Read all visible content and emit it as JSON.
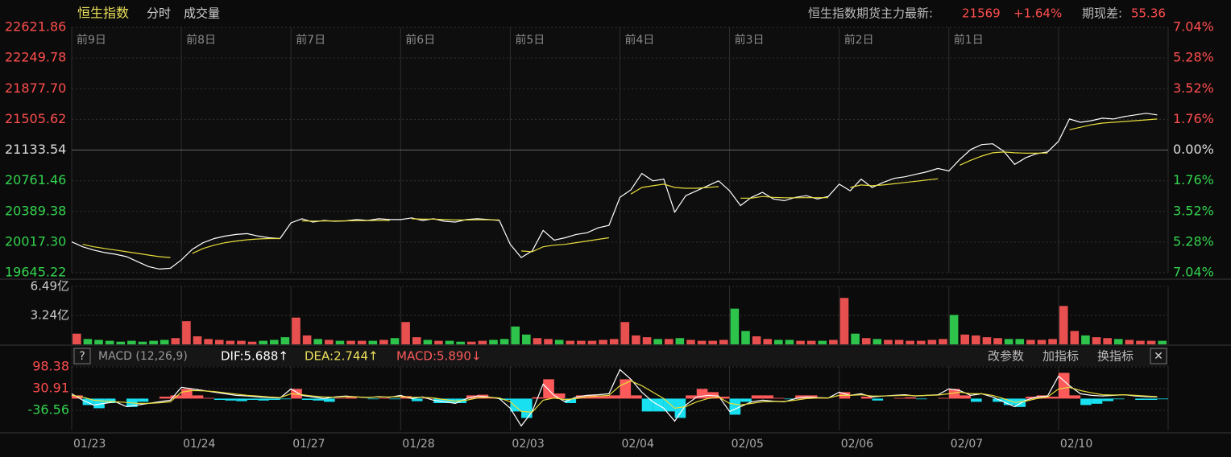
{
  "header": {
    "title": "恒生指数",
    "tabs": [
      "分时",
      "成交量"
    ],
    "futures_label": "恒生指数期货主力最新:",
    "futures_price": "21569",
    "futures_change": "+1.64%",
    "basis_label": "期现差:",
    "basis_value": "55.36"
  },
  "macd_header": {
    "help": "?",
    "name": "MACD (12,26,9)",
    "dif": "DIF:5.688↑",
    "dea": "DEA:2.744↑",
    "macd": "MACD:5.890↓",
    "buttons": [
      "改参数",
      "加指标",
      "换指标"
    ],
    "close": "✕"
  },
  "chart_data": [
    {
      "type": "line",
      "categories": [
        "01/23",
        "01/24",
        "01/27",
        "01/28",
        "02/03",
        "02/04",
        "02/05",
        "02/06",
        "02/07",
        "02/10"
      ],
      "day_labels": [
        "前9日",
        "前8日",
        "前7日",
        "前6日",
        "前5日",
        "前4日",
        "前3日",
        "前2日",
        "前1日"
      ],
      "up_color": "#ff4d4d",
      "down_color": "#33d44f",
      "flat_color": "#dddddd",
      "x": [
        0,
        0.1,
        0.2,
        0.3,
        0.4,
        0.5,
        0.6,
        0.7,
        0.8,
        0.9,
        1,
        1.1,
        1.2,
        1.3,
        1.4,
        1.5,
        1.6,
        1.7,
        1.8,
        1.9,
        2,
        2.1,
        2.2,
        2.3,
        2.4,
        2.5,
        2.6,
        2.7,
        2.8,
        2.9,
        3,
        3.1,
        3.2,
        3.3,
        3.4,
        3.5,
        3.6,
        3.7,
        3.8,
        3.9,
        4,
        4.1,
        4.2,
        4.3,
        4.4,
        4.5,
        4.6,
        4.7,
        4.8,
        4.9,
        5,
        5.1,
        5.2,
        5.3,
        5.4,
        5.5,
        5.6,
        5.7,
        5.8,
        5.9,
        6,
        6.1,
        6.2,
        6.3,
        6.4,
        6.5,
        6.6,
        6.7,
        6.8,
        6.9,
        7,
        7.1,
        7.2,
        7.3,
        7.4,
        7.5,
        7.6,
        7.7,
        7.8,
        7.9,
        8,
        8.1,
        8.2,
        8.3,
        8.4,
        8.5,
        8.6,
        8.7,
        8.8,
        8.9,
        9,
        9.1,
        9.2,
        9.3,
        9.4,
        9.5,
        9.6,
        9.7,
        9.8,
        9.9
      ],
      "xlim": [
        0,
        10
      ],
      "ylim": [
        19645.22,
        22621.86
      ],
      "yticks": [
        22621.86,
        22249.78,
        {
          "value": 21877.7,
          "label": "21877.70"
        },
        21505.62,
        21133.54,
        20761.46,
        20389.38,
        {
          "value": 20017.3,
          "label": "20017.30"
        },
        19645.22
      ],
      "y2lim": [
        -7.04,
        7.04
      ],
      "y2ticks": [
        {
          "value": 7.04,
          "label": "7.04%"
        },
        {
          "value": 5.28,
          "label": "5.28%"
        },
        {
          "value": 3.52,
          "label": "3.52%"
        },
        {
          "value": 1.76,
          "label": "1.76%"
        },
        {
          "value": 0,
          "label": "0.00%"
        },
        {
          "value": -1.76,
          "label": "1.76%"
        },
        {
          "value": -3.52,
          "label": "3.52%"
        },
        {
          "value": -5.28,
          "label": "5.28%"
        },
        {
          "value": -7.04,
          "label": "7.04%"
        }
      ],
      "grid": true,
      "series": [
        {
          "color": "#ffffff",
          "values": [
            20020,
            19960,
            19920,
            19890,
            19870,
            19840,
            19780,
            19720,
            19690,
            19700,
            19800,
            19930,
            20010,
            20060,
            20090,
            20110,
            20120,
            20090,
            20070,
            20060,
            20250,
            20300,
            20260,
            20280,
            20270,
            20275,
            20290,
            20280,
            20300,
            20290,
            20290,
            20310,
            20280,
            20300,
            20270,
            20260,
            20290,
            20300,
            20290,
            20280,
            19990,
            19830,
            19910,
            20160,
            20040,
            20070,
            20110,
            20130,
            20190,
            20220,
            20560,
            20650,
            20850,
            20760,
            20780,
            20380,
            20580,
            20640,
            20700,
            20760,
            20640,
            20460,
            20560,
            20620,
            20540,
            20520,
            20560,
            20580,
            20540,
            20570,
            20720,
            20640,
            20780,
            20680,
            20740,
            20790,
            20810,
            20840,
            20870,
            20910,
            20880,
            21020,
            21140,
            21200,
            21210,
            21120,
            20960,
            21040,
            21090,
            21110,
            21240,
            21510,
            21470,
            21490,
            21520,
            21510,
            21540,
            21560,
            21580,
            21560
          ]
        },
        {
          "color": "#e6dc3c",
          "values": [
            null,
            19990,
            19960,
            19940,
            19920,
            19900,
            19880,
            19860,
            19840,
            19830,
            null,
            19880,
            19940,
            19980,
            20010,
            20030,
            20045,
            20055,
            20060,
            20060,
            null,
            20275,
            20272,
            20274,
            20274,
            20275,
            20277,
            20278,
            20280,
            20280,
            null,
            20300,
            20295,
            20295,
            20290,
            20285,
            20285,
            20287,
            20287,
            20286,
            null,
            19910,
            19900,
            19960,
            19980,
            19990,
            20010,
            20030,
            20050,
            20070,
            null,
            20600,
            20680,
            20700,
            20720,
            20680,
            20670,
            20670,
            20680,
            20690,
            null,
            20550,
            20550,
            20570,
            20560,
            20555,
            20555,
            20556,
            20556,
            20556,
            null,
            20680,
            20710,
            20700,
            20710,
            20725,
            20740,
            20755,
            20770,
            20785,
            null,
            20950,
            21010,
            21060,
            21100,
            21110,
            21100,
            21095,
            21095,
            21097,
            null,
            21380,
            21410,
            21440,
            21460,
            21470,
            21480,
            21490,
            21500,
            21510
          ]
        }
      ]
    },
    {
      "type": "bar",
      "up_color": "#e8504f",
      "down_color": "#2ec44b",
      "ylim": [
        0,
        6.49
      ],
      "yticks": [
        {
          "value": 6.49,
          "label": "6.49亿"
        },
        {
          "value": 3.24,
          "label": "3.24亿"
        }
      ],
      "grid": true,
      "values": [
        1.2,
        0.6,
        0.5,
        0.4,
        0.3,
        0.4,
        0.3,
        0.4,
        0.5,
        0.7,
        2.6,
        0.9,
        0.6,
        0.5,
        0.4,
        0.4,
        0.3,
        0.4,
        0.5,
        0.8,
        3.0,
        1.0,
        0.6,
        0.5,
        0.4,
        0.4,
        0.4,
        0.4,
        0.5,
        0.7,
        2.5,
        0.8,
        0.5,
        0.4,
        0.4,
        0.3,
        0.3,
        0.4,
        0.5,
        0.6,
        2.0,
        1.1,
        0.7,
        0.6,
        0.5,
        0.4,
        0.4,
        0.4,
        0.5,
        0.6,
        2.5,
        1.0,
        0.8,
        0.6,
        0.6,
        0.7,
        0.5,
        0.4,
        0.4,
        0.5,
        4.0,
        1.5,
        0.9,
        0.6,
        0.5,
        0.5,
        0.4,
        0.4,
        0.4,
        0.5,
        5.2,
        1.2,
        0.7,
        0.6,
        0.5,
        0.5,
        0.4,
        0.4,
        0.5,
        0.6,
        3.3,
        1.1,
        1.0,
        0.8,
        0.7,
        0.6,
        0.6,
        0.5,
        0.5,
        0.6,
        4.3,
        1.5,
        1.0,
        0.8,
        0.7,
        0.6,
        0.5,
        0.4,
        0.4,
        0.4
      ]
    },
    {
      "type": "macd",
      "up_color": "#ff5a5a",
      "down_color": "#18e0f0",
      "ylim": [
        -99,
        101
      ],
      "yticks": [
        98.38,
        30.91,
        -36.56
      ],
      "grid": true,
      "values": [
        10,
        -20,
        -30,
        -14,
        0,
        -26,
        -10,
        0,
        6,
        10,
        30,
        10,
        2,
        -4,
        -6,
        -8,
        -4,
        -6,
        -4,
        -2,
        30,
        -4,
        -6,
        -10,
        2,
        4,
        0,
        -2,
        2,
        -2,
        8,
        -8,
        2,
        -14,
        -14,
        -14,
        10,
        12,
        2,
        -4,
        -40,
        -60,
        4,
        60,
        16,
        -14,
        10,
        10,
        8,
        10,
        60,
        10,
        -40,
        -40,
        -40,
        -60,
        10,
        30,
        20,
        6,
        -50,
        -10,
        10,
        10,
        2,
        -2,
        10,
        10,
        2,
        0,
        20,
        0,
        6,
        -6,
        0,
        2,
        4,
        -2,
        0,
        2,
        30,
        10,
        -10,
        0,
        -10,
        -20,
        -26,
        6,
        10,
        6,
        80,
        10,
        -20,
        -16,
        -8,
        -2,
        0,
        -4,
        -4,
        -2
      ],
      "series": [
        {
          "color": "#ffffff",
          "values": [
            15,
            -5,
            -20,
            -15,
            -10,
            -25,
            -20,
            -15,
            -10,
            -5,
            35,
            30,
            25,
            20,
            15,
            10,
            8,
            5,
            3,
            2,
            30,
            10,
            5,
            0,
            5,
            8,
            5,
            3,
            6,
            4,
            10,
            0,
            5,
            -5,
            -10,
            -15,
            0,
            8,
            5,
            0,
            -30,
            -85,
            -40,
            45,
            10,
            -10,
            5,
            10,
            12,
            15,
            90,
            60,
            20,
            -10,
            -30,
            -70,
            -20,
            5,
            10,
            8,
            -40,
            -25,
            -10,
            -5,
            -8,
            -10,
            0,
            5,
            3,
            2,
            20,
            10,
            15,
            5,
            8,
            10,
            12,
            8,
            10,
            12,
            30,
            25,
            10,
            15,
            5,
            -10,
            -25,
            -5,
            5,
            8,
            70,
            40,
            15,
            10,
            8,
            10,
            12,
            8,
            6,
            5
          ]
        },
        {
          "color": "#e6dc3c",
          "values": [
            10,
            5,
            -5,
            -8,
            -10,
            -12,
            -15,
            -15,
            -13,
            -10,
            20,
            25,
            24,
            22,
            18,
            14,
            10,
            8,
            5,
            3,
            15,
            12,
            8,
            5,
            4,
            6,
            5,
            4,
            5,
            5,
            6,
            4,
            4,
            2,
            -3,
            -8,
            -5,
            2,
            4,
            2,
            -10,
            -40,
            -42,
            -5,
            2,
            -3,
            0,
            5,
            8,
            10,
            40,
            55,
            40,
            20,
            0,
            -30,
            -25,
            -10,
            0,
            5,
            -15,
            -20,
            -15,
            -10,
            -9,
            -9,
            -5,
            0,
            2,
            2,
            10,
            10,
            12,
            8,
            8,
            9,
            10,
            9,
            10,
            11,
            15,
            20,
            15,
            15,
            10,
            0,
            -12,
            -8,
            0,
            5,
            30,
            35,
            25,
            18,
            12,
            11,
            12,
            10,
            8,
            6
          ]
        }
      ]
    }
  ]
}
